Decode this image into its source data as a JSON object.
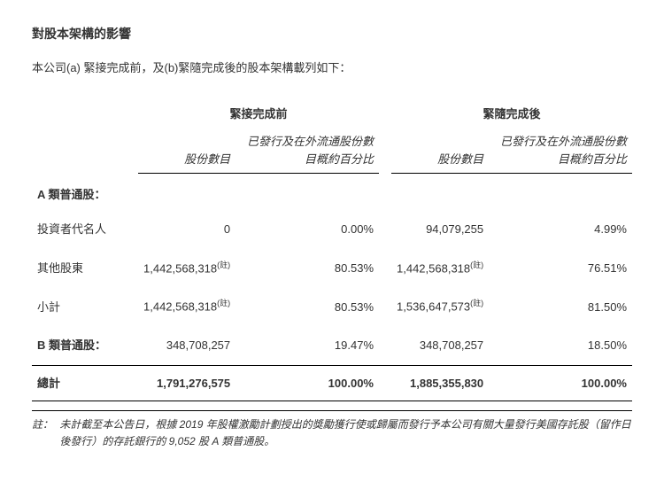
{
  "title": "對股本架構的影響",
  "intro": "本公司(a) 緊接完成前，及(b)緊隨完成後的股本架構載列如下：",
  "group_headers": {
    "before": "緊接完成前",
    "after": "緊隨完成後"
  },
  "col_headers": {
    "shares": "股份數目",
    "pct_before": "已發行及在外流通股份數目概約百分比",
    "pct_after": "已發行及在外流通股份數目概約百分比"
  },
  "category_a": "A 類普通股：",
  "rows": [
    {
      "label": "投資者代名人",
      "before_shares": "0",
      "before_pct": "0.00%",
      "after_shares": "94,079,255",
      "after_pct": "4.99%"
    },
    {
      "label": "其他股東",
      "before_shares": "1,442,568,318",
      "before_note": "(註)",
      "before_pct": "80.53%",
      "after_shares": "1,442,568,318",
      "after_note": "(註)",
      "after_pct": "76.51%"
    }
  ],
  "subtotal": {
    "label": "小計",
    "before_shares": "1,442,568,318",
    "before_note": "(註)",
    "before_pct": "80.53%",
    "after_shares": "1,536,647,573",
    "after_note": "(註)",
    "after_pct": "81.50%"
  },
  "category_b": {
    "label": "B 類普通股：",
    "before_shares": "348,708,257",
    "before_pct": "19.47%",
    "after_shares": "348,708,257",
    "after_pct": "18.50%"
  },
  "total": {
    "label": "總計",
    "before_shares": "1,791,276,575",
    "before_pct": "100.00%",
    "after_shares": "1,885,355,830",
    "after_pct": "100.00%"
  },
  "footnote": {
    "label": "註：",
    "text": "未計截至本公告日，根據 2019 年股權激勵計劃授出的獎勵獲行使或歸屬而發行予本公司有關大量發行美國存託股（留作日後發行）的存託銀行的 9,052 股 A 類普通股。"
  }
}
